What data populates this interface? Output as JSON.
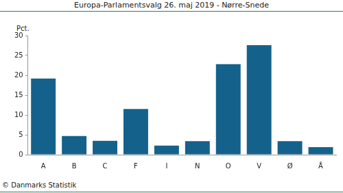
{
  "chart_data": {
    "type": "bar",
    "title": "Europa-Parlamentsvalg 26. maj 2019 - Nørre-Snede",
    "y_label": "Pct.",
    "source": "© Danmarks Statistik",
    "categories": [
      "A",
      "B",
      "C",
      "F",
      "I",
      "N",
      "O",
      "V",
      "Ø",
      "Å"
    ],
    "values": [
      19.2,
      4.7,
      3.5,
      11.5,
      2.3,
      3.4,
      22.8,
      27.6,
      3.4,
      1.9
    ],
    "color": "#14628c",
    "ylim": [
      0,
      30
    ],
    "yticks": [
      0,
      5,
      10,
      15,
      20,
      25,
      30
    ],
    "grid": false
  }
}
